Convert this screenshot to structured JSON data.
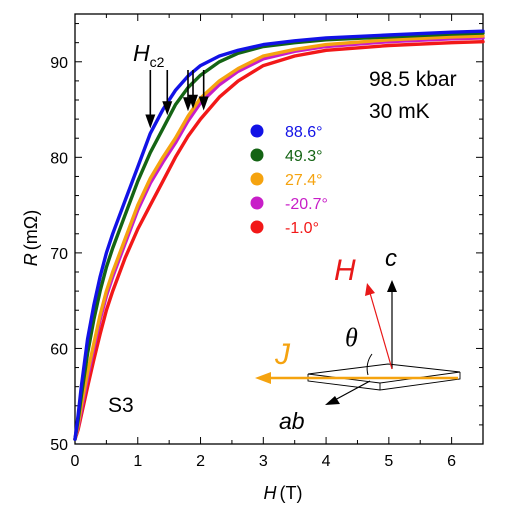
{
  "chart_data": {
    "type": "line",
    "xlabel_symbol": "H",
    "xlabel_unit": "(T)",
    "ylabel_symbol": "R",
    "ylabel_unit": "(mΩ)",
    "xlim": [
      0,
      6.5
    ],
    "ylim": [
      50,
      95
    ],
    "xticks": [
      "0",
      "1",
      "2",
      "3",
      "4",
      "5",
      "6"
    ],
    "yticks": [
      "50",
      "60",
      "70",
      "80",
      "90"
    ],
    "grid": false,
    "legend_position": "center",
    "annotations": {
      "pressure": "98.5 kbar",
      "temperature": "30 mK",
      "sample": "S3",
      "hc2_label": "H",
      "hc2_subscript": "c2",
      "diagram_H": "H",
      "diagram_c": "c",
      "diagram_theta": "θ",
      "diagram_J": "J",
      "diagram_ab": "ab"
    },
    "hc2_arrows_x": [
      1.2,
      1.47,
      1.8,
      1.88,
      2.05
    ],
    "series": [
      {
        "name": "88.6°",
        "color": "#1212e6",
        "x": [
          0,
          0.05,
          0.1,
          0.2,
          0.3,
          0.4,
          0.5,
          0.6,
          0.8,
          1.0,
          1.2,
          1.4,
          1.6,
          1.8,
          2.0,
          2.3,
          2.6,
          3.0,
          3.5,
          4.0,
          5.0,
          6.0,
          6.5
        ],
        "y": [
          50.5,
          53,
          56,
          61,
          64.5,
          67.5,
          70,
          72,
          75.5,
          79,
          82.5,
          85,
          87,
          88.5,
          89.6,
          90.6,
          91.2,
          91.8,
          92.2,
          92.5,
          92.8,
          93.1,
          93.2
        ]
      },
      {
        "name": "49.3°",
        "color": "#146414",
        "x": [
          0,
          0.05,
          0.1,
          0.2,
          0.3,
          0.4,
          0.5,
          0.6,
          0.8,
          1.0,
          1.2,
          1.4,
          1.6,
          1.8,
          2.0,
          2.3,
          2.6,
          3.0,
          3.5,
          4.0,
          5.0,
          6.0,
          6.5
        ],
        "y": [
          50.5,
          52.5,
          55,
          59.5,
          63,
          66,
          68.5,
          70.5,
          74,
          77.5,
          80.5,
          83,
          85.5,
          87.3,
          88.6,
          90,
          90.9,
          91.6,
          92,
          92.3,
          92.6,
          92.9,
          93
        ]
      },
      {
        "name": "27.4°",
        "color": "#f5a30f",
        "x": [
          0,
          0.05,
          0.1,
          0.2,
          0.3,
          0.4,
          0.5,
          0.6,
          0.8,
          1.0,
          1.2,
          1.4,
          1.6,
          1.8,
          2.0,
          2.3,
          2.6,
          3.0,
          3.5,
          4.0,
          5.0,
          6.0,
          6.5
        ],
        "y": [
          50.5,
          52,
          54,
          57.5,
          60.5,
          63.5,
          66,
          68,
          71.5,
          75,
          77.8,
          80,
          82,
          84.3,
          86.2,
          88,
          89.3,
          90.6,
          91.3,
          91.8,
          92.3,
          92.6,
          92.7
        ]
      },
      {
        "name": "-20.7°",
        "color": "#c81ec8",
        "x": [
          0,
          0.05,
          0.1,
          0.2,
          0.3,
          0.4,
          0.5,
          0.6,
          0.8,
          1.0,
          1.2,
          1.4,
          1.6,
          1.8,
          2.0,
          2.3,
          2.6,
          3.0,
          3.5,
          4.0,
          5.0,
          6.0,
          6.5
        ],
        "y": [
          50.5,
          51.8,
          53.5,
          57,
          60,
          63,
          65.5,
          67.5,
          71,
          74.5,
          77.3,
          79.5,
          81.5,
          83.8,
          85.7,
          87.6,
          89,
          90.3,
          91.1,
          91.6,
          92.1,
          92.4,
          92.5
        ]
      },
      {
        "name": "-1.0°",
        "color": "#f21818",
        "x": [
          0,
          0.05,
          0.1,
          0.2,
          0.3,
          0.4,
          0.5,
          0.6,
          0.8,
          1.0,
          1.2,
          1.4,
          1.6,
          1.8,
          2.0,
          2.3,
          2.6,
          3.0,
          3.5,
          4.0,
          5.0,
          6.0,
          6.5
        ],
        "y": [
          50.5,
          51.5,
          53,
          56,
          58.8,
          61.5,
          64,
          66,
          69.5,
          72.5,
          75,
          77.5,
          80,
          82.2,
          84,
          86.3,
          88,
          89.6,
          90.6,
          91.2,
          91.7,
          92,
          92.1
        ]
      }
    ]
  }
}
